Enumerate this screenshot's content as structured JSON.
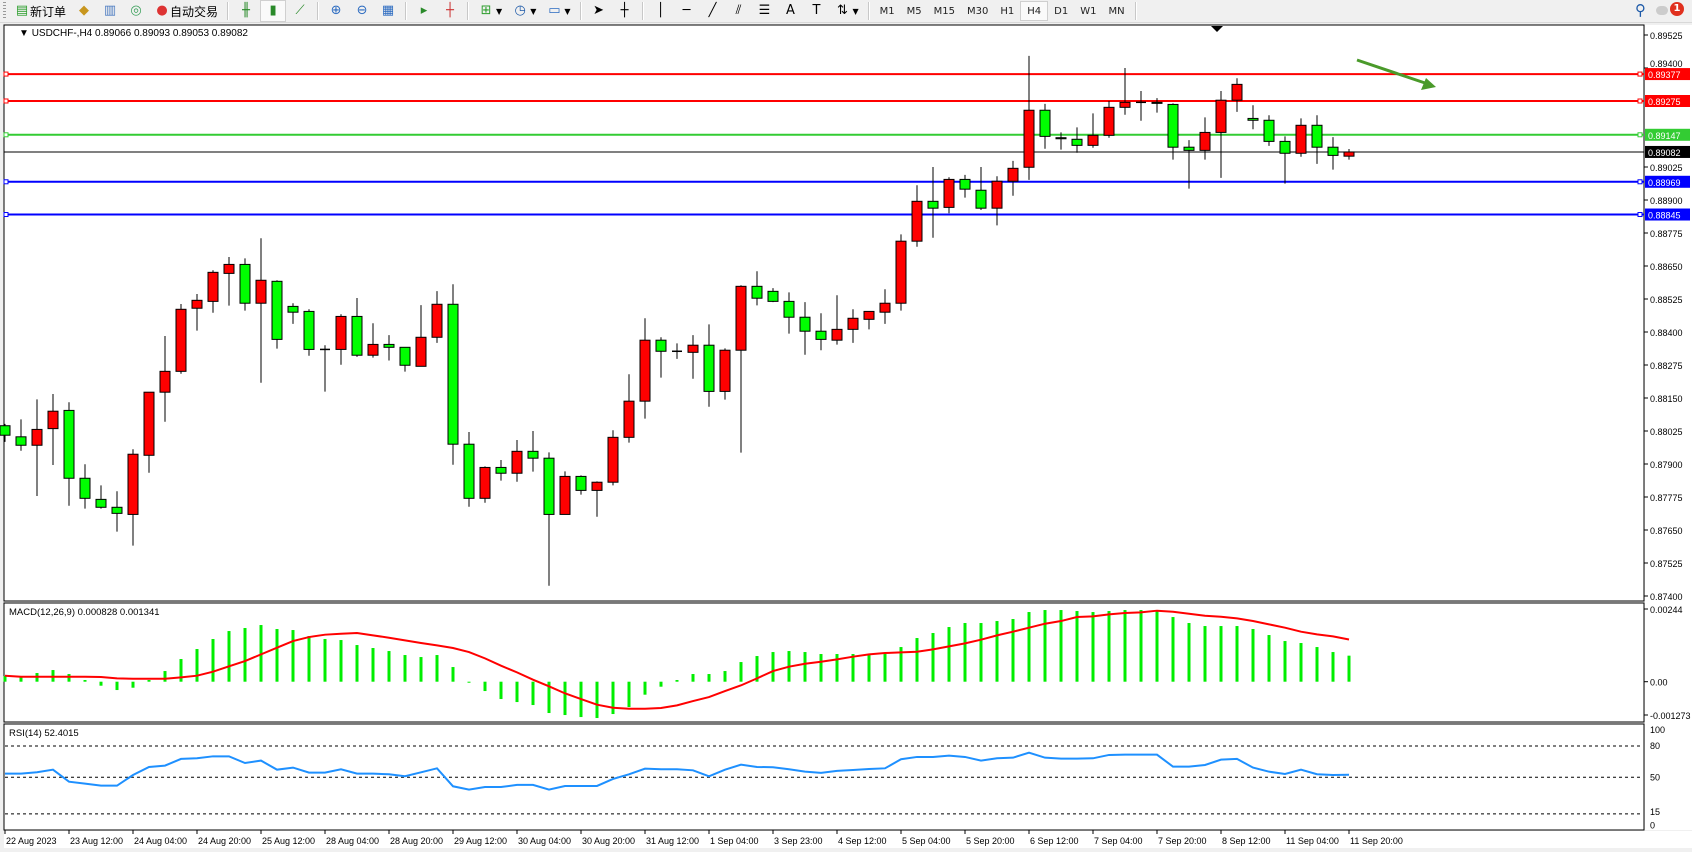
{
  "toolbar": {
    "new_order_label": "新订单",
    "auto_trade_label": "自动交易",
    "icons": [
      "new-order-icon",
      "market-watch-icon",
      "navigator-icon",
      "signals-icon",
      "auto-trade-icon",
      "bar-chart-icon",
      "candlestick-icon",
      "line-chart-icon",
      "zoom-in-icon",
      "zoom-out-icon",
      "tile-windows-icon",
      "autoscroll-icon",
      "chart-shift-icon",
      "indicators-icon",
      "periods-icon",
      "templates-icon",
      "cursor-icon",
      "crosshair-icon",
      "vertical-line-icon",
      "horizontal-line-icon",
      "trendline-icon",
      "fibonacci-icon",
      "channel-icon",
      "text-icon",
      "text-label-icon",
      "arrows-icon"
    ],
    "timeframes": [
      "M1",
      "M5",
      "M15",
      "M30",
      "H1",
      "H4",
      "D1",
      "W1",
      "MN"
    ],
    "active_timeframe": "H4",
    "notification_count": "1"
  },
  "chart": {
    "symbol_label": "USDCHF-,H4",
    "ohlc_label": "0.89066 0.89093 0.89053 0.89082",
    "colors": {
      "bull": "#ff0000",
      "bear": "#00ff00",
      "outline": "#000000",
      "macd_hist": "#00ee00",
      "signal": "#ff0000",
      "rsi": "#1e90ff"
    },
    "price_ticks": [
      "0.89525",
      "0.89400",
      "0.89025",
      "0.88900",
      "0.88775",
      "0.88650",
      "0.88525",
      "0.88400",
      "0.88275",
      "0.88150",
      "0.88025",
      "0.87900",
      "0.87775",
      "0.87650",
      "0.87525",
      "0.87400"
    ],
    "horizontal_lines": [
      {
        "price": "0.89377",
        "color": "#ff0000"
      },
      {
        "price": "0.89275",
        "color": "#ff0000"
      },
      {
        "price": "0.89147",
        "color": "#33cc33"
      },
      {
        "price": "0.88969",
        "color": "#0000ff"
      },
      {
        "price": "0.88845",
        "color": "#0000ff"
      }
    ],
    "current_price": "0.89082",
    "arrow_color": "#4a9a2a",
    "time_labels": [
      "22 Aug 2023",
      "23 Aug 12:00",
      "24 Aug 04:00",
      "24 Aug 20:00",
      "25 Aug 12:00",
      "28 Aug 04:00",
      "28 Aug 20:00",
      "29 Aug 12:00",
      "30 Aug 04:00",
      "30 Aug 20:00",
      "31 Aug 12:00",
      "1 Sep 04:00",
      "3 Sep 23:00",
      "4 Sep 12:00",
      "5 Sep 04:00",
      "5 Sep 20:00",
      "6 Sep 12:00",
      "7 Sep 04:00",
      "7 Sep 20:00",
      "8 Sep 12:00",
      "11 Sep 04:00",
      "11 Sep 20:00"
    ],
    "ohlc": [
      [
        0.88045,
        0.88052,
        0.87984,
        0.88009
      ],
      [
        0.88003,
        0.88069,
        0.8795,
        0.87971
      ],
      [
        0.87971,
        0.88145,
        0.87779,
        0.88031
      ],
      [
        0.88034,
        0.88165,
        0.87896,
        0.881
      ],
      [
        0.88103,
        0.88134,
        0.87742,
        0.87846
      ],
      [
        0.87846,
        0.87899,
        0.87731,
        0.8777
      ],
      [
        0.87766,
        0.87819,
        0.87731,
        0.87736
      ],
      [
        0.87736,
        0.87797,
        0.87644,
        0.87713
      ],
      [
        0.87709,
        0.87956,
        0.87591,
        0.87937
      ],
      [
        0.87933,
        0.88172,
        0.87867,
        0.88172
      ],
      [
        0.88172,
        0.88385,
        0.8806,
        0.88251
      ],
      [
        0.88251,
        0.88506,
        0.88242,
        0.88486
      ],
      [
        0.8849,
        0.88544,
        0.88405,
        0.8852
      ],
      [
        0.88516,
        0.88634,
        0.88473,
        0.88626
      ],
      [
        0.88622,
        0.88684,
        0.885,
        0.88656
      ],
      [
        0.88656,
        0.88679,
        0.88481,
        0.88509
      ],
      [
        0.88509,
        0.88755,
        0.88208,
        0.88596
      ],
      [
        0.88592,
        0.88596,
        0.88337,
        0.88372
      ],
      [
        0.88497,
        0.88509,
        0.88431,
        0.88475
      ],
      [
        0.88478,
        0.88486,
        0.8831,
        0.88334
      ],
      [
        0.88334,
        0.8835,
        0.88174,
        0.88334
      ],
      [
        0.88334,
        0.88467,
        0.88276,
        0.88459
      ],
      [
        0.88459,
        0.88529,
        0.88306,
        0.88312
      ],
      [
        0.88312,
        0.88433,
        0.88303,
        0.88353
      ],
      [
        0.88353,
        0.88388,
        0.88292,
        0.88342
      ],
      [
        0.88342,
        0.88342,
        0.8825,
        0.88274
      ],
      [
        0.8827,
        0.88502,
        0.8827,
        0.8838
      ],
      [
        0.8838,
        0.88555,
        0.88359,
        0.88505
      ],
      [
        0.88505,
        0.88581,
        0.87897,
        0.87975
      ],
      [
        0.87975,
        0.88021,
        0.87738,
        0.8777
      ],
      [
        0.8777,
        0.87891,
        0.87753,
        0.87887
      ],
      [
        0.87887,
        0.87915,
        0.87837,
        0.87865
      ],
      [
        0.87865,
        0.87991,
        0.87833,
        0.87948
      ],
      [
        0.87948,
        0.88025,
        0.87871,
        0.87922
      ],
      [
        0.87922,
        0.87944,
        0.87439,
        0.87709
      ],
      [
        0.87709,
        0.87872,
        0.87709,
        0.87853
      ],
      [
        0.87853,
        0.87857,
        0.87784,
        0.878
      ],
      [
        0.878,
        0.87834,
        0.877,
        0.87831
      ],
      [
        0.87831,
        0.88028,
        0.87819,
        0.88001
      ],
      [
        0.88001,
        0.8824,
        0.87981,
        0.88138
      ],
      [
        0.88138,
        0.88452,
        0.88072,
        0.88369
      ],
      [
        0.88369,
        0.8838,
        0.88227,
        0.88327
      ],
      [
        0.88327,
        0.88357,
        0.88298,
        0.88327
      ],
      [
        0.88323,
        0.88388,
        0.88223,
        0.8835
      ],
      [
        0.8835,
        0.88429,
        0.88117,
        0.88175
      ],
      [
        0.88175,
        0.88338,
        0.88144,
        0.88331
      ],
      [
        0.88331,
        0.88577,
        0.87943,
        0.88573
      ],
      [
        0.88573,
        0.8863,
        0.88501,
        0.88528
      ],
      [
        0.88554,
        0.88566,
        0.88513,
        0.88516
      ],
      [
        0.88516,
        0.8855,
        0.88394,
        0.88456
      ],
      [
        0.88456,
        0.88513,
        0.88314,
        0.88403
      ],
      [
        0.88403,
        0.88471,
        0.88331,
        0.88372
      ],
      [
        0.88369,
        0.88539,
        0.88352,
        0.8841
      ],
      [
        0.8841,
        0.88486,
        0.88359,
        0.88452
      ],
      [
        0.88448,
        0.88478,
        0.8841,
        0.88478
      ],
      [
        0.88475,
        0.88562,
        0.88431,
        0.88509
      ],
      [
        0.88509,
        0.8877,
        0.88481,
        0.88744
      ],
      [
        0.88744,
        0.88956,
        0.88723,
        0.88895
      ],
      [
        0.88895,
        0.89025,
        0.88757,
        0.88869
      ],
      [
        0.88872,
        0.88986,
        0.8885,
        0.88978
      ],
      [
        0.88978,
        0.88995,
        0.88909,
        0.88941
      ],
      [
        0.88937,
        0.89025,
        0.88862,
        0.88869
      ],
      [
        0.88869,
        0.8899,
        0.88804,
        0.88971
      ],
      [
        0.88971,
        0.89048,
        0.88916,
        0.8902
      ],
      [
        0.89024,
        0.89446,
        0.88976,
        0.8924
      ],
      [
        0.8924,
        0.89264,
        0.89094,
        0.89141
      ],
      [
        0.89136,
        0.89156,
        0.89091,
        0.89132
      ],
      [
        0.8913,
        0.89175,
        0.89079,
        0.89107
      ],
      [
        0.89107,
        0.89228,
        0.89098,
        0.89145
      ],
      [
        0.89145,
        0.89275,
        0.89136,
        0.89251
      ],
      [
        0.89251,
        0.894,
        0.89223,
        0.8927
      ],
      [
        0.8927,
        0.89313,
        0.892,
        0.8927
      ],
      [
        0.8927,
        0.89286,
        0.89231,
        0.89266
      ],
      [
        0.89262,
        0.89266,
        0.89053,
        0.891
      ],
      [
        0.891,
        0.89127,
        0.88943,
        0.89088
      ],
      [
        0.89088,
        0.89213,
        0.89053,
        0.89156
      ],
      [
        0.89156,
        0.89313,
        0.88984,
        0.89278
      ],
      [
        0.89278,
        0.89361,
        0.89234,
        0.89338
      ],
      [
        0.89209,
        0.89259,
        0.89168,
        0.89202
      ],
      [
        0.89202,
        0.89221,
        0.89105,
        0.89122
      ],
      [
        0.89122,
        0.89141,
        0.88962,
        0.89077
      ],
      [
        0.89077,
        0.89209,
        0.89064,
        0.89183
      ],
      [
        0.89183,
        0.89221,
        0.89037,
        0.891
      ],
      [
        0.891,
        0.89138,
        0.89015,
        0.89069
      ],
      [
        0.89066,
        0.89093,
        0.89053,
        0.89082
      ]
    ]
  },
  "macd": {
    "label": "MACD(12,26,9) 0.000828 0.001341",
    "ticks": [
      "0.00244",
      "0.00",
      "-0.001273"
    ],
    "histogram": [
      0.00018,
      0.00018,
      0.000276,
      0.000371,
      0.000244,
      5.3e-05,
      -0.000127,
      -0.000265,
      -0.000191,
      5.3e-05,
      0.000339,
      0.000721,
      0.001039,
      0.001357,
      0.001611,
      0.001707,
      0.001802,
      0.001675,
      0.001643,
      0.001452,
      0.001357,
      0.001325,
      0.001166,
      0.001071,
      0.000975,
      0.000848,
      0.000784,
      0.000848,
      0.000466,
      -3.2e-05,
      -0.000297,
      -0.000551,
      -0.000647,
      -0.000742,
      -0.000996,
      -0.00106,
      -0.001124,
      -0.001155,
      -0.001028,
      -0.000806,
      -0.000413,
      -0.000159,
      5.3e-05,
      0.000244,
      0.000244,
      0.000339,
      0.000625,
      0.000816,
      0.000943,
      0.000975,
      0.000943,
      0.00088,
      0.00088,
      0.00088,
      0.000848,
      0.00088,
      0.001102,
      0.001389,
      0.001548,
      0.001738,
      0.001866,
      0.001866,
      0.001929,
      0.001993,
      0.002215,
      0.002279,
      0.002279,
      0.002247,
      0.002215,
      0.002247,
      0.002279,
      0.002279,
      0.002247,
      0.002056,
      0.001866,
      0.00177,
      0.00177,
      0.00177,
      0.001675,
      0.001484,
      0.001293,
      0.00123,
      0.001102,
      0.000943,
      0.000828
    ],
    "signal": [
      0.000191,
      0.000159,
      0.000159,
      0.000159,
      0.000159,
      0.000159,
      0.000148,
      0.000106,
      9.5e-05,
      9.5e-05,
      9.5e-05,
      0.000138,
      0.000191,
      0.000318,
      0.000488,
      0.000657,
      0.000869,
      0.001081,
      0.001293,
      0.00142,
      0.001495,
      0.001526,
      0.001548,
      0.001473,
      0.001399,
      0.001314,
      0.00123,
      0.001155,
      0.001071,
      0.000943,
      0.000742,
      0.000509,
      0.000297,
      6.4e-05,
      -0.000148,
      -0.000371,
      -0.000551,
      -0.000731,
      -0.000827,
      -0.000859,
      -0.000859,
      -0.000837,
      -0.000753,
      -0.000615,
      -0.000488,
      -0.000297,
      -0.000117,
      0.000106,
      0.000339,
      0.000477,
      0.000572,
      0.000636,
      0.00071,
      0.000795,
      0.000869,
      0.000912,
      0.000933,
      0.000954,
      0.001028,
      0.001124,
      0.001219,
      0.001336,
      0.001473,
      0.00159,
      0.001717,
      0.001844,
      0.001929,
      0.002056,
      0.002078,
      0.002141,
      0.002184,
      0.002205,
      0.002258,
      0.002226,
      0.002162,
      0.002099,
      0.002067,
      0.002014,
      0.001929,
      0.001823,
      0.001717,
      0.00159,
      0.001505,
      0.001442,
      0.001341
    ]
  },
  "rsi": {
    "label": "RSI(14) 52.4015",
    "ticks": [
      "100",
      "80",
      "50",
      "15",
      "0"
    ],
    "levels": [
      80,
      50,
      15
    ],
    "values": [
      53.5,
      53.5,
      54.8,
      57.3,
      45.8,
      43.9,
      42.0,
      42.0,
      52.2,
      59.9,
      61.2,
      67.6,
      68.2,
      70.1,
      70.1,
      63.7,
      66.0,
      57.3,
      59.3,
      54.5,
      54.5,
      57.7,
      53.5,
      53.5,
      52.9,
      51.0,
      54.8,
      58.6,
      41.4,
      38.2,
      40.7,
      40.7,
      42.7,
      42.7,
      38.2,
      41.7,
      41.7,
      41.7,
      48.4,
      52.9,
      58.3,
      57.7,
      57.7,
      56.7,
      51.0,
      57.3,
      62.1,
      59.9,
      59.6,
      57.7,
      55.4,
      54.2,
      56.1,
      57.0,
      58.0,
      58.6,
      67.3,
      69.5,
      69.5,
      70.8,
      69.5,
      66.0,
      68.2,
      68.8,
      73.6,
      68.8,
      67.9,
      67.9,
      68.2,
      71.4,
      71.7,
      71.7,
      71.7,
      60.2,
      60.2,
      61.8,
      66.9,
      67.6,
      59.3,
      55.4,
      53.2,
      57.3,
      52.9,
      52.2,
      52.4015
    ]
  }
}
